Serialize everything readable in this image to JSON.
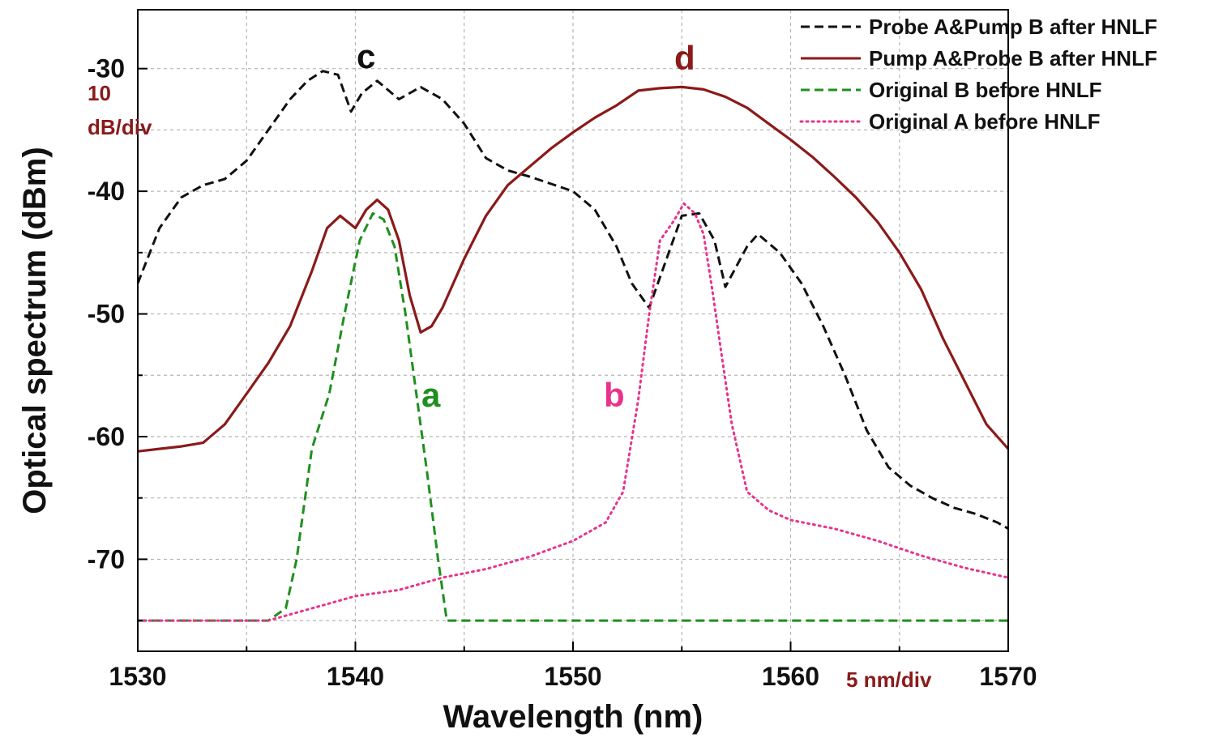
{
  "chart_data": {
    "type": "line",
    "xlabel": "Wavelength (nm)",
    "ylabel": "Optical spectrum (dBm)",
    "xlim": [
      1530,
      1570
    ],
    "ylim": [
      -77.5,
      -25.2
    ],
    "x_ticks": [
      1530,
      1540,
      1550,
      1560,
      1570
    ],
    "y_ticks": [
      -30,
      -40,
      -50,
      -60,
      -70
    ],
    "grid": true,
    "legend_placement": "top-right",
    "annotations": {
      "y_div": "10\ndB/div",
      "x_div": "5 nm/div",
      "label_a": "a",
      "label_b": "b",
      "label_c": "c",
      "label_d": "d"
    },
    "series": [
      {
        "name": "Probe A&Pump B after HNLF",
        "color": "#111111",
        "style": "dashed",
        "x": [
          1530,
          1531,
          1532,
          1533,
          1534,
          1535,
          1536,
          1537,
          1537.8,
          1538.5,
          1539.2,
          1539.8,
          1540.3,
          1541,
          1542,
          1543,
          1544,
          1545,
          1546,
          1547,
          1548,
          1549,
          1550,
          1551,
          1552,
          1552.7,
          1553.5,
          1554.3,
          1555,
          1555.8,
          1556.5,
          1557,
          1558,
          1558.5,
          1559.5,
          1560.5,
          1561.5,
          1562.5,
          1563.5,
          1564.5,
          1565.5,
          1566.5,
          1567.5,
          1568.5,
          1569.5,
          1570
        ],
        "y": [
          -47.5,
          -43,
          -40.5,
          -39.5,
          -39,
          -37.5,
          -35,
          -32.5,
          -31,
          -30.2,
          -30.5,
          -33.5,
          -32,
          -31,
          -32.5,
          -31.5,
          -32.5,
          -34.5,
          -37.3,
          -38.3,
          -38.8,
          -39.4,
          -40,
          -41.5,
          -44.5,
          -47.5,
          -49.5,
          -45.5,
          -42,
          -41.8,
          -44,
          -47.8,
          -44.5,
          -43.5,
          -45,
          -47.5,
          -51,
          -55,
          -59.5,
          -62.5,
          -64,
          -65,
          -65.8,
          -66.3,
          -67,
          -67.5
        ]
      },
      {
        "name": "Pump A&Probe B after HNLF",
        "color": "#8B1A1A",
        "style": "solid",
        "x": [
          1530,
          1531,
          1532,
          1533,
          1534,
          1535,
          1536,
          1537,
          1538,
          1538.7,
          1539.3,
          1540,
          1540.5,
          1541,
          1541.5,
          1542,
          1542.5,
          1543,
          1543.5,
          1544,
          1545,
          1546,
          1547,
          1548,
          1549,
          1550,
          1551,
          1552,
          1553,
          1554,
          1555,
          1556,
          1557,
          1558,
          1559,
          1560,
          1561,
          1562,
          1563,
          1564,
          1565,
          1566,
          1567,
          1568,
          1569,
          1570
        ],
        "y": [
          -61.2,
          -61,
          -60.8,
          -60.5,
          -59,
          -56.5,
          -54,
          -51,
          -46.5,
          -43,
          -42,
          -43,
          -41.5,
          -40.7,
          -41.5,
          -44,
          -48.5,
          -51.5,
          -51,
          -49.5,
          -45.5,
          -42,
          -39.5,
          -38,
          -36.5,
          -35.2,
          -34,
          -33,
          -31.8,
          -31.6,
          -31.5,
          -31.7,
          -32.3,
          -33.2,
          -34.5,
          -35.8,
          -37.2,
          -38.8,
          -40.5,
          -42.5,
          -45,
          -48,
          -52,
          -55.5,
          -59,
          -61
        ]
      },
      {
        "name": "Original B before HNLF",
        "color": "#1F8F1F",
        "style": "dashed",
        "x": [
          1530,
          1533,
          1536,
          1536.8,
          1537.3,
          1538,
          1538.8,
          1539.5,
          1540.2,
          1540.8,
          1541.3,
          1541.8,
          1542.3,
          1542.8,
          1543.3,
          1543.8,
          1544.2,
          1545,
          1550,
          1555,
          1560,
          1565,
          1570
        ],
        "y": [
          -75,
          -75,
          -75,
          -74,
          -70,
          -61,
          -56.5,
          -50,
          -44,
          -41.8,
          -42.3,
          -44.5,
          -50,
          -56.5,
          -63,
          -70,
          -75,
          -75,
          -75,
          -75,
          -75,
          -75,
          -75
        ]
      },
      {
        "name": "Original A before HNLF",
        "color": "#E8338C",
        "style": "dotted",
        "x": [
          1530,
          1533,
          1536,
          1538,
          1540,
          1542,
          1544,
          1546,
          1548,
          1550,
          1551.5,
          1552.3,
          1553,
          1553.5,
          1554,
          1554.6,
          1555.1,
          1555.6,
          1556,
          1556.4,
          1556.8,
          1557.3,
          1558,
          1559,
          1560,
          1562,
          1564,
          1566,
          1568,
          1570
        ],
        "y": [
          -75,
          -75,
          -75,
          -74,
          -73,
          -72.5,
          -71.5,
          -70.8,
          -69.8,
          -68.5,
          -67,
          -64.5,
          -57,
          -50,
          -44,
          -42.5,
          -41,
          -41.8,
          -43.5,
          -48,
          -53,
          -59,
          -64.5,
          -66,
          -66.8,
          -67.5,
          -68.5,
          -69.7,
          -70.7,
          -71.5
        ]
      }
    ]
  }
}
